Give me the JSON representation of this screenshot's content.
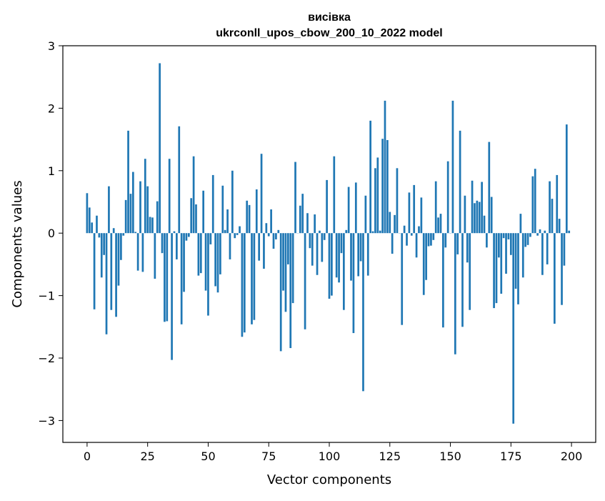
{
  "chart_data": {
    "type": "bar",
    "title": "висівка",
    "subtitle": "ukrconll_upos_cbow_200_10_2022 model",
    "xlabel": "Vector components",
    "ylabel": "Components values",
    "xlim": [
      -10,
      210
    ],
    "ylim": [
      -3.35,
      3
    ],
    "xticks": [
      0,
      25,
      50,
      75,
      100,
      125,
      150,
      175,
      200
    ],
    "yticks": [
      -3,
      -2,
      -1,
      0,
      1,
      2,
      3
    ],
    "ytick_labels": [
      "−3",
      "−2",
      "−1",
      "0",
      "1",
      "2",
      "3"
    ],
    "bar_color": "#1f77b4",
    "bar_width": 0.8,
    "grid": false,
    "legend": "none",
    "x": [
      0,
      1,
      2,
      3,
      4,
      5,
      6,
      7,
      8,
      9,
      10,
      11,
      12,
      13,
      14,
      15,
      16,
      17,
      18,
      19,
      20,
      21,
      22,
      23,
      24,
      25,
      26,
      27,
      28,
      29,
      30,
      31,
      32,
      33,
      34,
      35,
      36,
      37,
      38,
      39,
      40,
      41,
      42,
      43,
      44,
      45,
      46,
      47,
      48,
      49,
      50,
      51,
      52,
      53,
      54,
      55,
      56,
      57,
      58,
      59,
      60,
      61,
      62,
      63,
      64,
      65,
      66,
      67,
      68,
      69,
      70,
      71,
      72,
      73,
      74,
      75,
      76,
      77,
      78,
      79,
      80,
      81,
      82,
      83,
      84,
      85,
      86,
      87,
      88,
      89,
      90,
      91,
      92,
      93,
      94,
      95,
      96,
      97,
      98,
      99,
      100,
      101,
      102,
      103,
      104,
      105,
      106,
      107,
      108,
      109,
      110,
      111,
      112,
      113,
      114,
      115,
      116,
      117,
      118,
      119,
      120,
      121,
      122,
      123,
      124,
      125,
      126,
      127,
      128,
      129,
      130,
      131,
      132,
      133,
      134,
      135,
      136,
      137,
      138,
      139,
      140,
      141,
      142,
      143,
      144,
      145,
      146,
      147,
      148,
      149,
      150,
      151,
      152,
      153,
      154,
      155,
      156,
      157,
      158,
      159,
      160,
      161,
      162,
      163,
      164,
      165,
      166,
      167,
      168,
      169,
      170,
      171,
      172,
      173,
      174,
      175,
      176,
      177,
      178,
      179,
      180,
      181,
      182,
      183,
      184,
      185,
      186,
      187,
      188,
      189,
      190,
      191,
      192,
      193,
      194,
      195,
      196,
      197,
      198,
      199
    ],
    "values": [
      0.64,
      0.41,
      0.17,
      -1.22,
      0.28,
      -0.07,
      -0.71,
      -0.35,
      -1.62,
      0.75,
      -1.23,
      0.08,
      -1.34,
      -0.84,
      -0.43,
      -0.04,
      0.53,
      1.64,
      0.63,
      0.98,
      0.02,
      -0.6,
      0.83,
      -0.62,
      1.19,
      0.75,
      0.26,
      0.25,
      -0.73,
      0.51,
      2.72,
      -0.32,
      -1.42,
      -1.41,
      1.19,
      -2.03,
      0.03,
      -0.42,
      1.71,
      -1.46,
      -0.94,
      -0.12,
      -0.06,
      0.56,
      1.23,
      0.46,
      -0.68,
      -0.64,
      0.68,
      -0.92,
      -1.32,
      -0.18,
      0.93,
      -0.85,
      -0.95,
      -0.66,
      0.76,
      0.05,
      0.38,
      -0.42,
      1.0,
      -0.08,
      -0.03,
      0.11,
      -1.66,
      -1.59,
      0.52,
      0.45,
      -1.46,
      -1.39,
      0.7,
      -0.44,
      1.27,
      -0.57,
      0.16,
      -0.05,
      0.38,
      -0.25,
      -0.1,
      0.05,
      -1.89,
      -0.92,
      -1.26,
      -0.5,
      -1.84,
      -1.12,
      1.14,
      0.0,
      0.44,
      0.63,
      -1.54,
      0.32,
      -0.24,
      -0.52,
      0.3,
      -0.67,
      0.04,
      -0.46,
      -0.11,
      0.85,
      -1.05,
      -1.0,
      1.23,
      -0.71,
      -0.79,
      -0.32,
      -1.23,
      0.05,
      0.74,
      -0.76,
      -1.6,
      0.81,
      -0.69,
      -0.45,
      -2.53,
      0.6,
      -0.68,
      1.8,
      0.03,
      1.04,
      1.21,
      0.04,
      1.51,
      2.12,
      1.49,
      0.34,
      -0.33,
      0.29,
      1.04,
      0.0,
      -1.47,
      0.12,
      -0.2,
      0.65,
      -0.04,
      0.77,
      -0.39,
      0.11,
      0.57,
      -0.99,
      -0.75,
      -0.21,
      -0.2,
      -0.11,
      0.83,
      0.25,
      0.31,
      -1.51,
      -0.23,
      1.15,
      0.0,
      2.12,
      -1.94,
      -0.34,
      1.64,
      -1.5,
      0.6,
      -0.47,
      -1.23,
      0.84,
      0.48,
      0.52,
      0.5,
      0.82,
      0.28,
      -0.23,
      1.46,
      0.58,
      -1.2,
      -1.12,
      -0.39,
      -0.97,
      -0.08,
      -0.65,
      -0.1,
      -0.35,
      -3.05,
      -0.89,
      -1.14,
      0.31,
      -0.71,
      -0.22,
      -0.19,
      -0.06,
      0.91,
      1.03,
      -0.04,
      0.06,
      -0.67,
      0.04,
      -0.5,
      0.83,
      0.55,
      -1.45,
      0.93,
      0.23,
      -1.15,
      -0.52,
      1.74,
      0.04
    ]
  }
}
